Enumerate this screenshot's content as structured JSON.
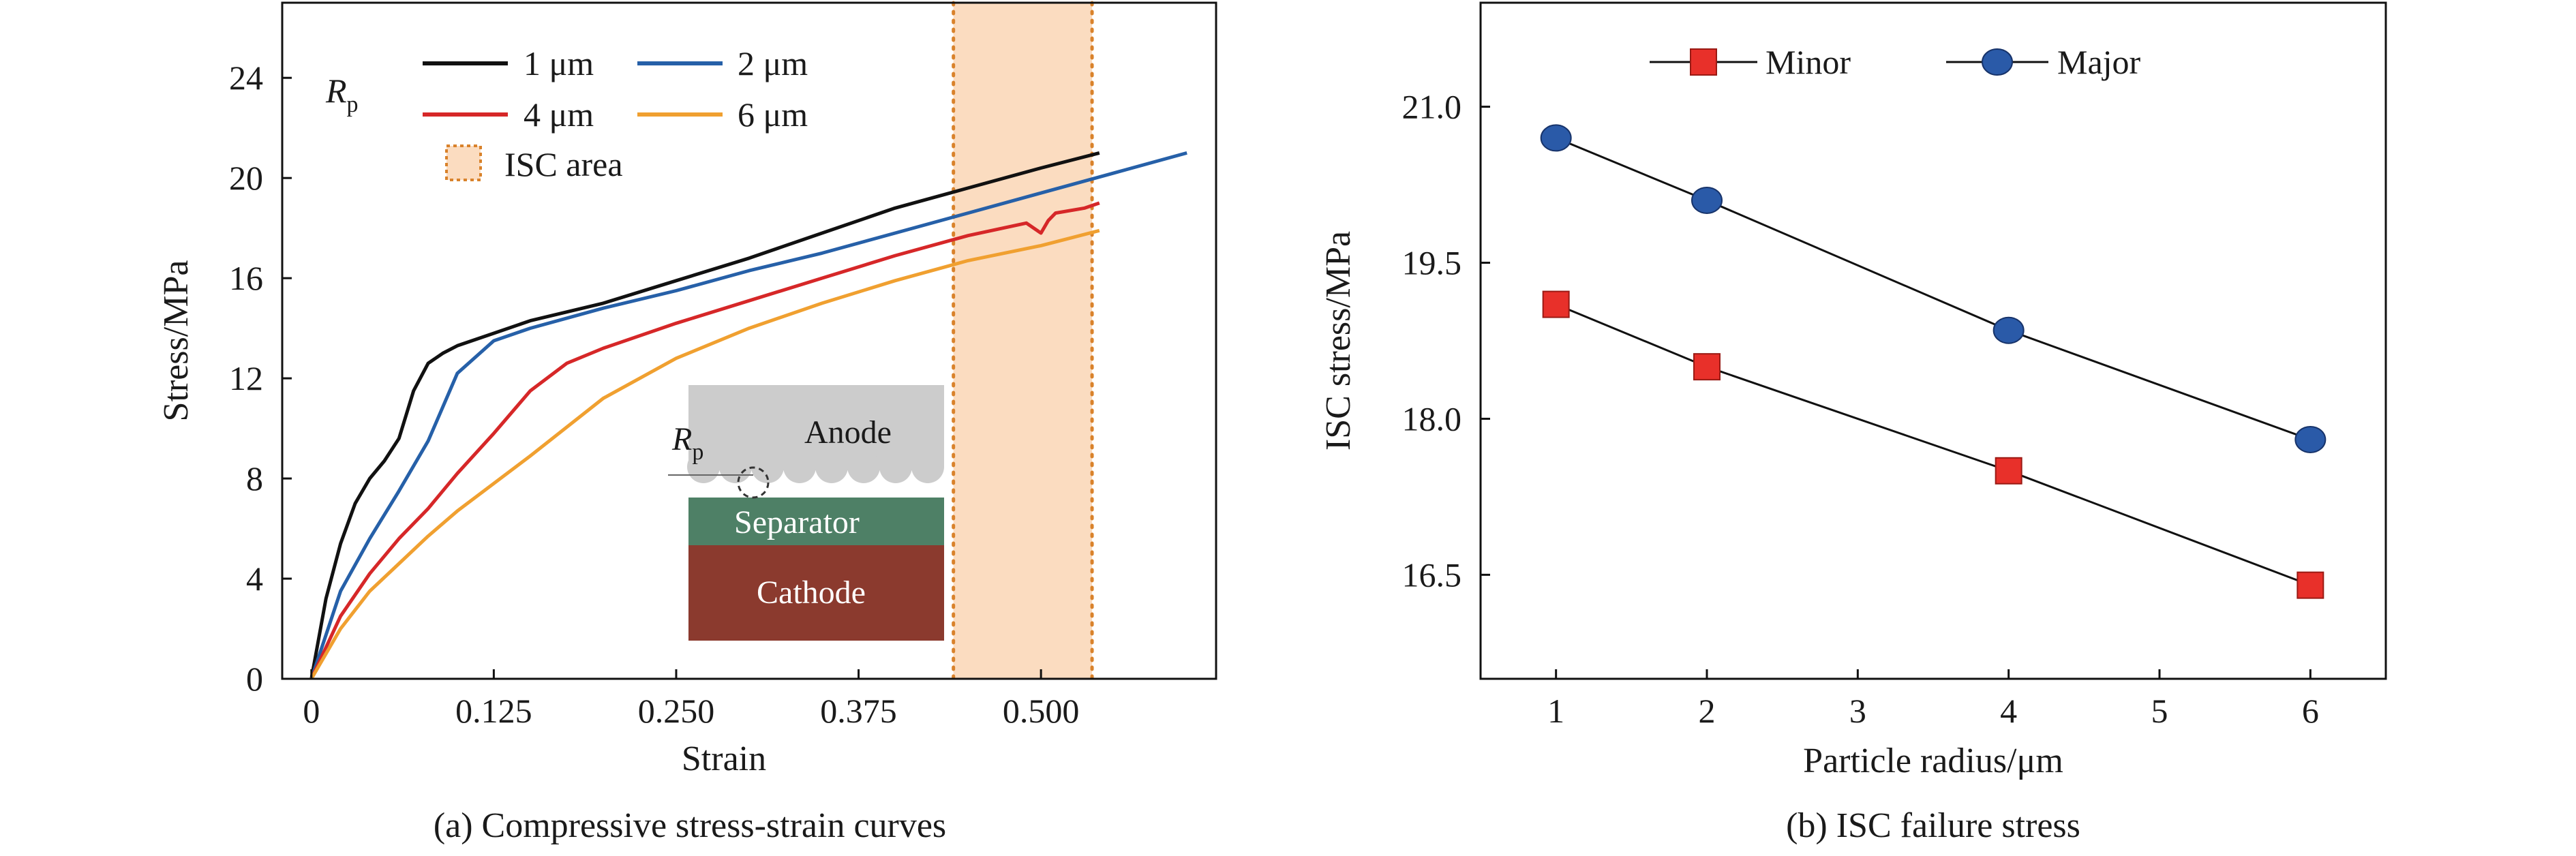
{
  "chart_data": [
    {
      "type": "line",
      "caption": "(a) Compressive stress-strain curves",
      "xlabel": "Strain",
      "ylabel": "Stress/MPa",
      "xlim": [
        -0.02,
        0.62
      ],
      "ylim": [
        0,
        27
      ],
      "xticks": [
        0,
        0.125,
        0.25,
        0.375,
        0.5
      ],
      "xtick_labels": [
        "0",
        "0.125",
        "0.250",
        "0.375",
        "0.500"
      ],
      "yticks": [
        0,
        4,
        8,
        12,
        16,
        20,
        24
      ],
      "ytick_labels": [
        "0",
        "4",
        "8",
        "12",
        "16",
        "20",
        "24"
      ],
      "legend_title_main": "R",
      "legend_title_sub": "p",
      "legend_position": "top-left",
      "series": [
        {
          "name": "1 μm",
          "color": "#111111",
          "x": [
            0,
            0.01,
            0.02,
            0.03,
            0.04,
            0.05,
            0.06,
            0.07,
            0.08,
            0.09,
            0.1,
            0.125,
            0.15,
            0.2,
            0.25,
            0.3,
            0.35,
            0.4,
            0.45,
            0.5,
            0.54
          ],
          "y": [
            0,
            3.2,
            5.4,
            7.0,
            8.0,
            8.7,
            9.6,
            11.5,
            12.6,
            13.0,
            13.3,
            13.8,
            14.3,
            15.0,
            15.9,
            16.8,
            17.8,
            18.8,
            19.6,
            20.4,
            21.0
          ]
        },
        {
          "name": "2 μm",
          "color": "#2660a8",
          "x": [
            0,
            0.02,
            0.04,
            0.06,
            0.08,
            0.1,
            0.125,
            0.15,
            0.2,
            0.25,
            0.3,
            0.35,
            0.4,
            0.45,
            0.5,
            0.55,
            0.6
          ],
          "y": [
            0,
            3.5,
            5.6,
            7.5,
            9.5,
            12.2,
            13.5,
            14.0,
            14.8,
            15.5,
            16.3,
            17.0,
            17.8,
            18.6,
            19.4,
            20.2,
            21.0
          ]
        },
        {
          "name": "4 μm",
          "color": "#d62728",
          "x": [
            0,
            0.02,
            0.04,
            0.06,
            0.08,
            0.1,
            0.125,
            0.15,
            0.175,
            0.2,
            0.25,
            0.3,
            0.35,
            0.4,
            0.45,
            0.49,
            0.5,
            0.505,
            0.51,
            0.53,
            0.54
          ],
          "y": [
            0,
            2.5,
            4.2,
            5.6,
            6.8,
            8.2,
            9.8,
            11.5,
            12.6,
            13.2,
            14.2,
            15.1,
            16.0,
            16.9,
            17.7,
            18.2,
            17.8,
            18.3,
            18.6,
            18.8,
            19.0
          ]
        },
        {
          "name": "6 μm",
          "color": "#f0a030",
          "x": [
            0,
            0.02,
            0.04,
            0.06,
            0.08,
            0.1,
            0.125,
            0.15,
            0.2,
            0.25,
            0.3,
            0.35,
            0.4,
            0.45,
            0.5,
            0.54
          ],
          "y": [
            0,
            2.0,
            3.5,
            4.6,
            5.7,
            6.7,
            7.8,
            8.9,
            11.2,
            12.8,
            14.0,
            15.0,
            15.9,
            16.7,
            17.3,
            17.9
          ]
        }
      ],
      "isc_area": {
        "label": "ISC area",
        "x_range": [
          0.44,
          0.535
        ],
        "color": "#fbdcc0",
        "edge_color": "#d9822b"
      },
      "inset": {
        "r_main": "R",
        "r_sub": "p",
        "anode_label": "Anode",
        "separator_label": "Separator",
        "cathode_label": "Cathode",
        "anode_color": "#cccccc",
        "separator_color": "#4e8066",
        "cathode_color": "#8b3a2e"
      }
    },
    {
      "type": "line",
      "caption": "(b) ISC failure stress",
      "xlabel": "Particle radius/μm",
      "ylabel": "ISC stress/MPa",
      "xlim": [
        0.5,
        6.5
      ],
      "ylim": [
        15.5,
        22.0
      ],
      "xticks": [
        1,
        2,
        3,
        4,
        5,
        6
      ],
      "xtick_labels": [
        "1",
        "2",
        "3",
        "4",
        "5",
        "6"
      ],
      "yticks": [
        16.5,
        18.0,
        19.5,
        21.0
      ],
      "ytick_labels": [
        "16.5",
        "18.0",
        "19.5",
        "21.0"
      ],
      "legend_position": "top",
      "series": [
        {
          "name": "Minor",
          "color": "#e8302a",
          "marker": "square",
          "x": [
            1,
            2,
            4,
            6
          ],
          "y": [
            19.1,
            18.5,
            17.5,
            16.4
          ]
        },
        {
          "name": "Major",
          "color": "#2a5aa8",
          "marker": "circle",
          "x": [
            1,
            2,
            4,
            6
          ],
          "y": [
            20.7,
            20.1,
            18.85,
            17.8
          ]
        }
      ]
    }
  ]
}
